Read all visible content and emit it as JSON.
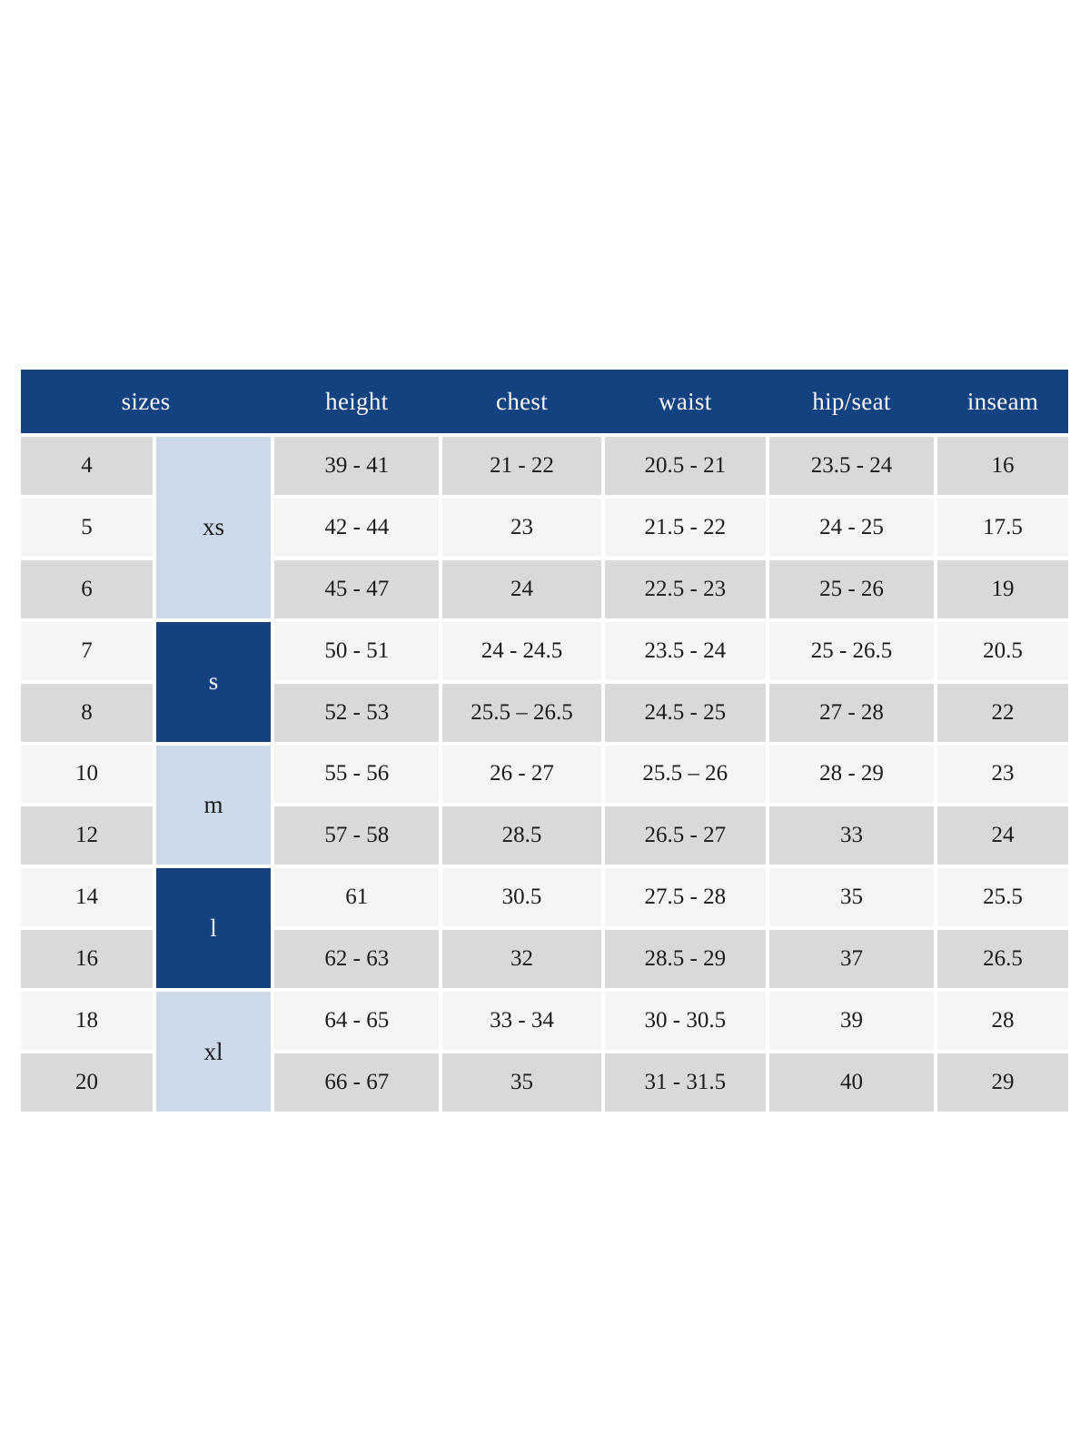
{
  "colors": {
    "navy": "#14417f",
    "light_blue": "#ccd9e8",
    "row_gray": "#d9d9d9",
    "row_light": "#f5f5f5",
    "header_text": "#f6f7f9",
    "cell_text": "#1b1b1b",
    "page_bg": "#ffffff"
  },
  "chart_data": {
    "type": "table",
    "title": "",
    "columns": [
      "sizes",
      "height",
      "chest",
      "waist",
      "hip/seat",
      "inseam"
    ],
    "size_groups": [
      {
        "label": "xs",
        "rows": 3,
        "variant": "light"
      },
      {
        "label": "s",
        "rows": 2,
        "variant": "dark"
      },
      {
        "label": "m",
        "rows": 2,
        "variant": "light"
      },
      {
        "label": "l",
        "rows": 2,
        "variant": "dark"
      },
      {
        "label": "xl",
        "rows": 2,
        "variant": "light"
      }
    ],
    "rows": [
      {
        "size": "4",
        "height": "39 - 41",
        "chest": "21 - 22",
        "waist": "20.5 - 21",
        "hip_seat": "23.5 - 24",
        "inseam": "16"
      },
      {
        "size": "5",
        "height": "42 - 44",
        "chest": "23",
        "waist": "21.5 - 22",
        "hip_seat": "24 - 25",
        "inseam": "17.5"
      },
      {
        "size": "6",
        "height": "45 - 47",
        "chest": "24",
        "waist": "22.5 - 23",
        "hip_seat": "25 - 26",
        "inseam": "19"
      },
      {
        "size": "7",
        "height": "50 - 51",
        "chest": "24 - 24.5",
        "waist": "23.5 - 24",
        "hip_seat": "25 - 26.5",
        "inseam": "20.5"
      },
      {
        "size": "8",
        "height": "52 - 53",
        "chest": "25.5 – 26.5",
        "waist": "24.5 - 25",
        "hip_seat": "27 - 28",
        "inseam": "22"
      },
      {
        "size": "10",
        "height": "55 - 56",
        "chest": "26 - 27",
        "waist": "25.5 – 26",
        "hip_seat": "28 - 29",
        "inseam": "23"
      },
      {
        "size": "12",
        "height": "57 - 58",
        "chest": "28.5",
        "waist": "26.5 - 27",
        "hip_seat": "33",
        "inseam": "24"
      },
      {
        "size": "14",
        "height": "61",
        "chest": "30.5",
        "waist": "27.5 - 28",
        "hip_seat": "35",
        "inseam": "25.5"
      },
      {
        "size": "16",
        "height": "62 - 63",
        "chest": "32",
        "waist": "28.5 - 29",
        "hip_seat": "37",
        "inseam": "26.5"
      },
      {
        "size": "18",
        "height": "64 - 65",
        "chest": "33 - 34",
        "waist": "30 - 30.5",
        "hip_seat": "39",
        "inseam": "28"
      },
      {
        "size": "20",
        "height": "66 - 67",
        "chest": "35",
        "waist": "31 - 31.5",
        "hip_seat": "40",
        "inseam": "29"
      }
    ]
  }
}
